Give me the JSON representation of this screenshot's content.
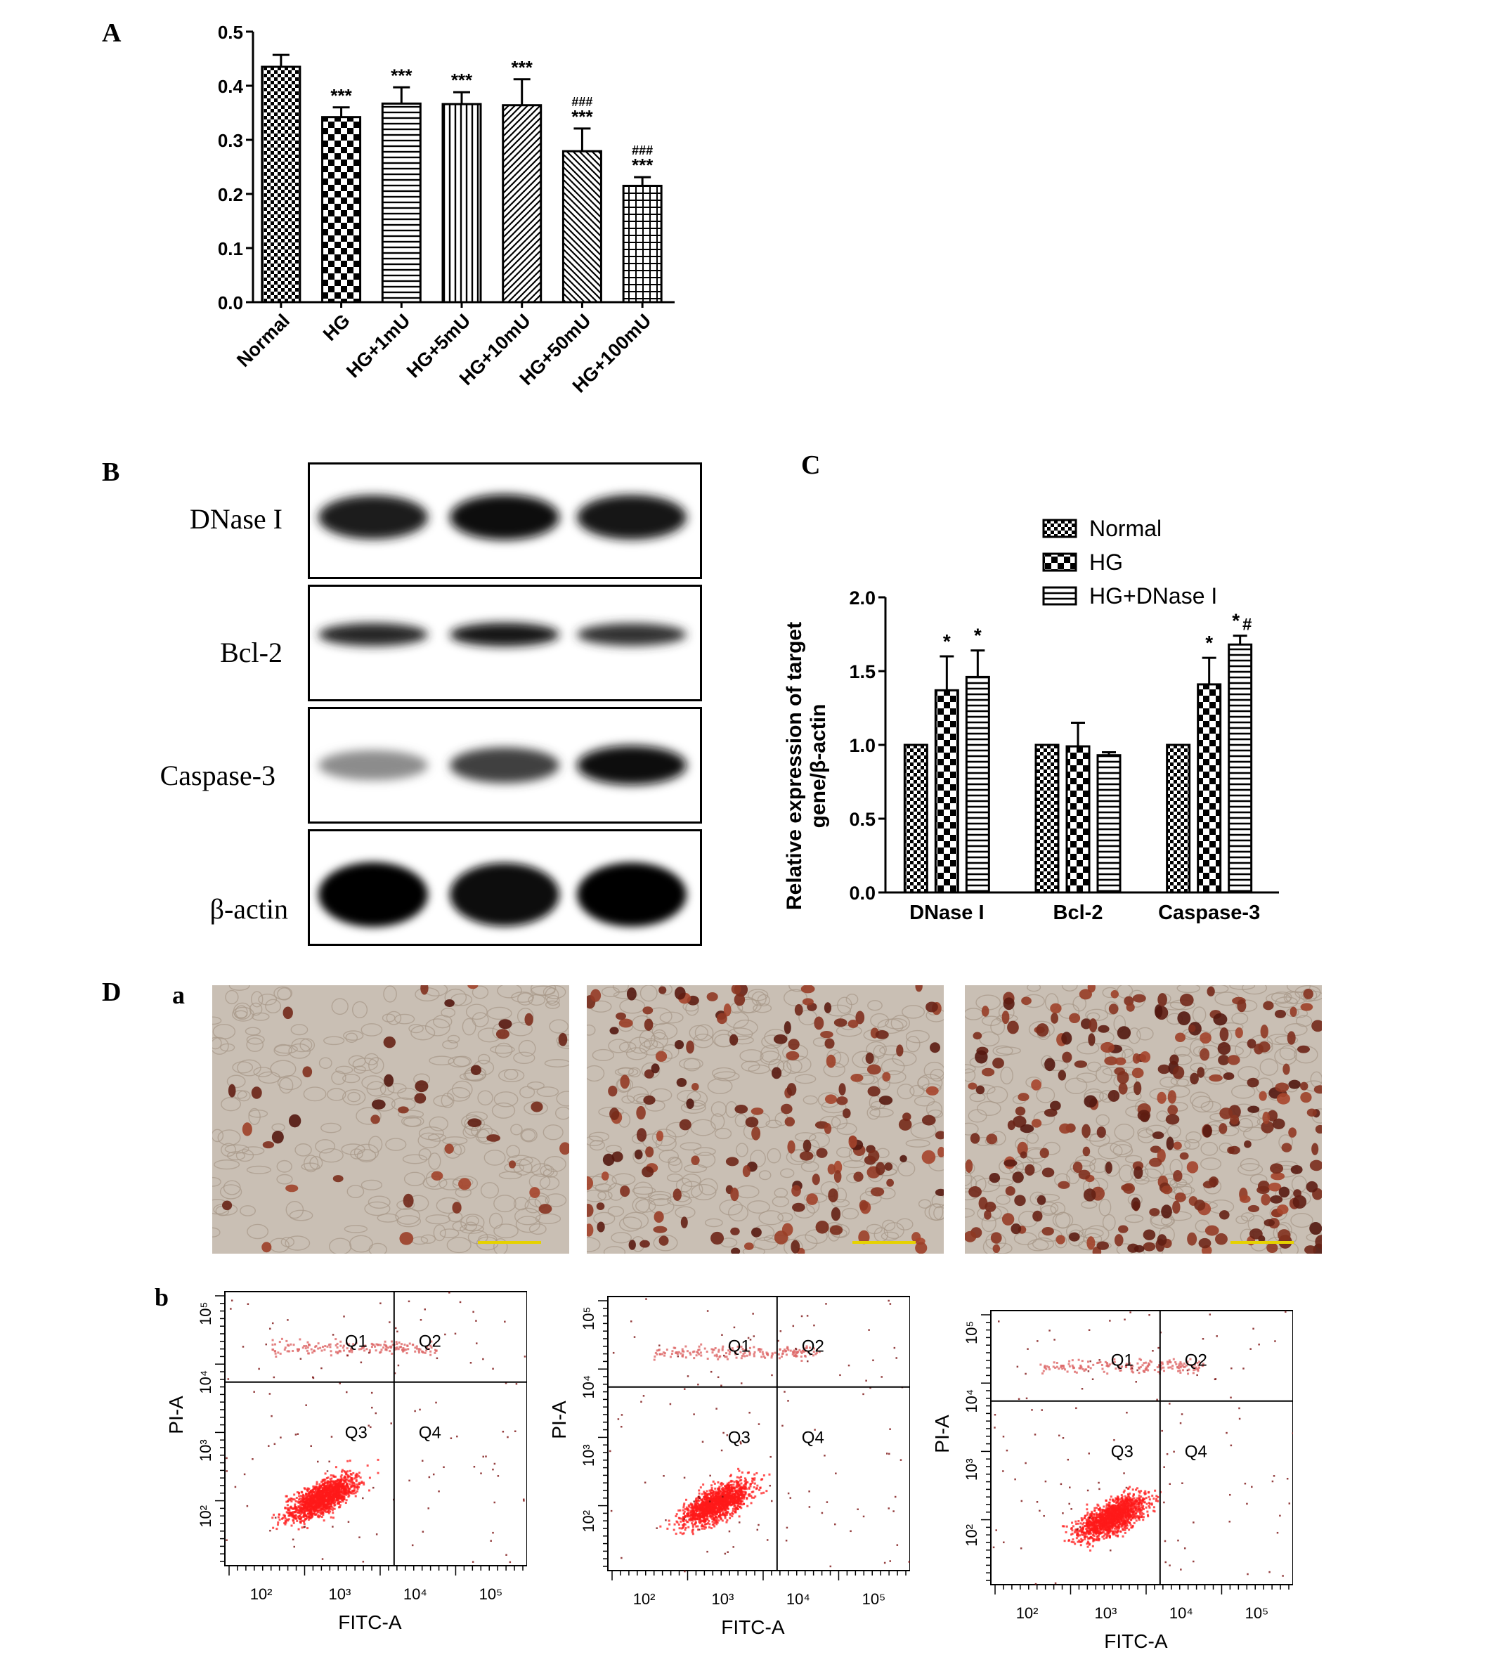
{
  "panels": {
    "A": "A",
    "B": "B",
    "C": "C",
    "D": "D",
    "a": "a",
    "b": "b"
  },
  "colors": {
    "bar_outline": "#000000",
    "flow_dot": "#ff1a1a",
    "scale_bar": "#e6d200",
    "micro_bg": "#c9bfb4",
    "stain": "#5a2a1a"
  },
  "chart_data": [
    {
      "id": "A",
      "type": "bar",
      "categories": [
        "Normal",
        "HG",
        "HG+1mU",
        "HG+5mU",
        "HG+10mU",
        "HG+50mU",
        "HG+100mU"
      ],
      "values": [
        0.435,
        0.342,
        0.367,
        0.366,
        0.364,
        0.279,
        0.215
      ],
      "errors": [
        0.022,
        0.018,
        0.03,
        0.022,
        0.048,
        0.042,
        0.016
      ],
      "annotations": [
        "",
        "***",
        "***",
        "***",
        "***",
        "###\n***",
        "###\n***"
      ],
      "patterns": [
        "checker-small",
        "checker-large",
        "hlines",
        "vlines",
        "diag-right",
        "diag-left",
        "grid"
      ],
      "ylim": [
        0,
        0.5
      ],
      "yticks": [
        "0.0",
        "0.1",
        "0.2",
        "0.3",
        "0.4",
        "0.5"
      ],
      "xlabel": "",
      "ylabel": "",
      "grid": false
    },
    {
      "id": "C",
      "type": "bar",
      "categories": [
        "DNase I",
        "Bcl-2",
        "Caspase-3"
      ],
      "series": [
        {
          "name": "Normal",
          "values": [
            1.0,
            1.0,
            1.0
          ],
          "errors": [
            0,
            0,
            0
          ],
          "annotations": [
            "",
            "",
            ""
          ]
        },
        {
          "name": "HG",
          "values": [
            1.37,
            0.99,
            1.41
          ],
          "errors": [
            0.23,
            0.16,
            0.18
          ],
          "annotations": [
            "*",
            "",
            "*"
          ]
        },
        {
          "name": "HG+DNase I",
          "values": [
            1.46,
            0.93,
            1.68
          ],
          "errors": [
            0.18,
            0.02,
            0.06
          ],
          "annotations": [
            "*",
            "",
            "*#"
          ]
        }
      ],
      "ylim": [
        0,
        2.0
      ],
      "yticks": [
        "0.0",
        "0.5",
        "1.0",
        "1.5",
        "2.0"
      ],
      "ylabel": "Relative expression of target\ngene/β-actin",
      "xlabel": "",
      "legend": "top",
      "grid": false
    }
  ],
  "western": {
    "labels": [
      "DNase I",
      "Bcl-2",
      "Caspase-3",
      "β-actin"
    ],
    "intensity": [
      [
        0.88,
        0.96,
        0.92
      ],
      [
        0.85,
        0.9,
        0.8
      ],
      [
        0.45,
        0.75,
        0.95
      ],
      [
        1.0,
        0.95,
        0.98
      ]
    ]
  },
  "flow": {
    "xlabel": "FITC-A",
    "ylabel": "PI-A",
    "x_ticks": [
      "10²",
      "10³",
      "10⁴",
      "10⁵"
    ],
    "y_ticks": [
      "10²",
      "10³",
      "10⁴",
      "10⁵"
    ],
    "quadrants": [
      "Q1",
      "Q2",
      "Q3",
      "Q4"
    ]
  },
  "micro": {
    "stained_cells": [
      40,
      160,
      260
    ]
  }
}
